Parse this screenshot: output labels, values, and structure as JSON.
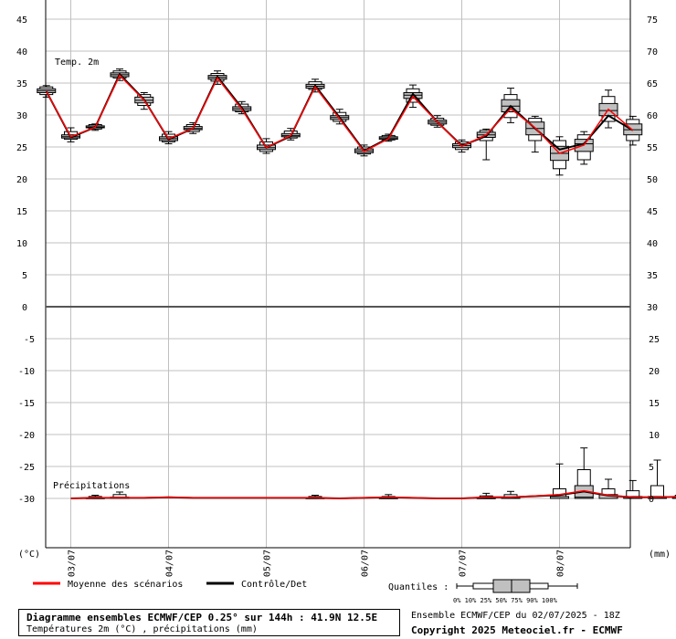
{
  "chart_data": {
    "type": "line",
    "panels": {
      "temperature": {
        "label": "Temp. 2m",
        "left_ticks": [
          "45",
          "40",
          "35",
          "30",
          "25",
          "20",
          "15",
          "10",
          "5",
          "0"
        ],
        "right_ticks": [
          "75",
          "70",
          "65",
          "60",
          "55",
          "50",
          "45",
          "40",
          "35",
          "30"
        ],
        "ylim": [
          0,
          47
        ]
      },
      "precipitation": {
        "label": "Précipitations",
        "left_ticks": [
          "0",
          "-5",
          "-10",
          "-15",
          "-20",
          "-25",
          "-30"
        ],
        "right_ticks": [
          "30",
          "25",
          "20",
          "15",
          "10",
          "5",
          "0"
        ],
        "ylim": [
          0,
          30
        ]
      }
    },
    "left_unit": "(°C)",
    "right_unit": "(mm)",
    "x_labels": [
      "03/07",
      "04/07",
      "05/07",
      "06/07",
      "07/07",
      "08/07"
    ],
    "x_hours": [
      6,
      12,
      18,
      24,
      30,
      36,
      42,
      48,
      54,
      60,
      66,
      72,
      78,
      84,
      90,
      96,
      102,
      108,
      114,
      120,
      126,
      132,
      138,
      144
    ],
    "temp_mean": [
      33.7,
      26.6,
      28.1,
      36.2,
      32.3,
      26.3,
      27.9,
      35.8,
      30.9,
      24.9,
      26.8,
      34.4,
      29.4,
      24.3,
      26.3,
      32.9,
      28.9,
      25.1,
      26.9,
      31.0,
      28.0,
      24.0,
      25.3,
      30.9,
      27.6
    ],
    "temp_control": [
      33.7,
      26.5,
      28.1,
      36.4,
      32.4,
      26.2,
      27.9,
      36.0,
      31.1,
      24.9,
      26.7,
      34.6,
      29.6,
      24.4,
      26.4,
      33.3,
      28.9,
      25.2,
      26.7,
      31.4,
      27.9,
      24.6,
      25.5,
      29.9,
      27.6
    ],
    "temp_boxes": [
      {
        "p0": 32.8,
        "p10": 33.2,
        "p25": 33.5,
        "p50": 33.8,
        "p75": 34.1,
        "p90": 34.4,
        "p100": 34.6
      },
      {
        "p0": 25.8,
        "p10": 26.2,
        "p25": 26.4,
        "p50": 26.6,
        "p75": 26.9,
        "p90": 27.4,
        "p100": 28.0
      },
      {
        "p0": 27.6,
        "p10": 27.8,
        "p25": 28.0,
        "p50": 28.1,
        "p75": 28.3,
        "p90": 28.5,
        "p100": 28.6
      },
      {
        "p0": 35.4,
        "p10": 35.8,
        "p25": 36.0,
        "p50": 36.3,
        "p75": 36.6,
        "p90": 36.9,
        "p100": 37.2
      },
      {
        "p0": 30.9,
        "p10": 31.5,
        "p25": 31.9,
        "p50": 32.3,
        "p75": 32.8,
        "p90": 33.2,
        "p100": 33.5
      },
      {
        "p0": 25.5,
        "p10": 25.8,
        "p25": 26.0,
        "p50": 26.3,
        "p75": 26.6,
        "p90": 27.0,
        "p100": 27.4
      },
      {
        "p0": 27.1,
        "p10": 27.4,
        "p25": 27.7,
        "p50": 27.9,
        "p75": 28.2,
        "p90": 28.5,
        "p100": 28.8
      },
      {
        "p0": 34.8,
        "p10": 35.3,
        "p25": 35.6,
        "p50": 35.9,
        "p75": 36.2,
        "p90": 36.5,
        "p100": 36.9
      },
      {
        "p0": 30.2,
        "p10": 30.5,
        "p25": 30.7,
        "p50": 31.0,
        "p75": 31.3,
        "p90": 31.7,
        "p100": 32.1
      },
      {
        "p0": 24.0,
        "p10": 24.3,
        "p25": 24.6,
        "p50": 24.9,
        "p75": 25.3,
        "p90": 25.8,
        "p100": 26.3
      },
      {
        "p0": 26.1,
        "p10": 26.4,
        "p25": 26.6,
        "p50": 26.8,
        "p75": 27.1,
        "p90": 27.5,
        "p100": 27.9
      },
      {
        "p0": 33.6,
        "p10": 34.0,
        "p25": 34.2,
        "p50": 34.5,
        "p75": 34.8,
        "p90": 35.2,
        "p100": 35.6
      },
      {
        "p0": 28.6,
        "p10": 29.0,
        "p25": 29.3,
        "p50": 29.6,
        "p75": 29.9,
        "p90": 30.4,
        "p100": 30.9
      },
      {
        "p0": 23.6,
        "p10": 23.9,
        "p25": 24.1,
        "p50": 24.4,
        "p75": 24.7,
        "p90": 25.0,
        "p100": 25.3
      },
      {
        "p0": 25.9,
        "p10": 26.1,
        "p25": 26.2,
        "p50": 26.4,
        "p75": 26.6,
        "p90": 26.8,
        "p100": 27.0
      },
      {
        "p0": 31.2,
        "p10": 32.0,
        "p25": 32.6,
        "p50": 33.1,
        "p75": 33.5,
        "p90": 34.1,
        "p100": 34.7
      },
      {
        "p0": 28.1,
        "p10": 28.4,
        "p25": 28.6,
        "p50": 28.9,
        "p75": 29.2,
        "p90": 29.5,
        "p100": 29.9
      },
      {
        "p0": 24.2,
        "p10": 24.6,
        "p25": 24.9,
        "p50": 25.2,
        "p75": 25.5,
        "p90": 25.8,
        "p100": 26.1
      },
      {
        "p0": 23.0,
        "p10": 26.0,
        "p25": 26.5,
        "p50": 26.9,
        "p75": 27.3,
        "p90": 27.6,
        "p100": 27.8
      },
      {
        "p0": 28.8,
        "p10": 29.6,
        "p25": 30.5,
        "p50": 31.4,
        "p75": 32.4,
        "p90": 33.2,
        "p100": 34.2
      },
      {
        "p0": 24.2,
        "p10": 26.0,
        "p25": 26.9,
        "p50": 27.9,
        "p75": 28.9,
        "p90": 29.5,
        "p100": 29.8
      },
      {
        "p0": 20.6,
        "p10": 21.6,
        "p25": 22.9,
        "p50": 24.0,
        "p75": 25.1,
        "p90": 26.0,
        "p100": 26.6
      },
      {
        "p0": 22.3,
        "p10": 23.0,
        "p25": 24.3,
        "p50": 25.5,
        "p75": 26.2,
        "p90": 26.9,
        "p100": 27.4
      },
      {
        "p0": 28.0,
        "p10": 29.0,
        "p25": 29.9,
        "p50": 30.7,
        "p75": 31.8,
        "p90": 32.9,
        "p100": 33.9
      },
      {
        "p0": 25.3,
        "p10": 26.0,
        "p25": 26.9,
        "p50": 27.7,
        "p75": 28.6,
        "p90": 29.3,
        "p100": 29.8
      }
    ],
    "precip_mean": [
      0,
      0.1,
      0.1,
      0.1,
      0.2,
      0.1,
      0.1,
      0.1,
      0.1,
      0.1,
      0.1,
      0,
      0.1,
      0.2,
      0.1,
      0,
      0,
      0.2,
      0.2,
      0.4,
      0.6,
      1.2,
      0.5,
      0.2,
      0.2,
      0.3,
      0.2,
      0.1
    ],
    "precip_boxes": [
      {
        "t": 12,
        "p0": 0,
        "p10": 0,
        "p25": 0,
        "p50": 0,
        "p75": 0.1,
        "p90": 0.3,
        "p100": 0.5
      },
      {
        "t": 18,
        "p0": 0,
        "p10": 0,
        "p25": 0,
        "p50": 0,
        "p75": 0.2,
        "p90": 0.6,
        "p100": 1.0
      },
      {
        "t": 66,
        "p0": 0,
        "p10": 0,
        "p25": 0,
        "p50": 0,
        "p75": 0.1,
        "p90": 0.3,
        "p100": 0.5
      },
      {
        "t": 84,
        "p0": 0,
        "p10": 0,
        "p25": 0,
        "p50": 0,
        "p75": 0.1,
        "p90": 0.3,
        "p100": 0.6
      },
      {
        "t": 108,
        "p0": 0,
        "p10": 0,
        "p25": 0,
        "p50": 0,
        "p75": 0.1,
        "p90": 0.4,
        "p100": 0.8
      },
      {
        "t": 114,
        "p0": 0,
        "p10": 0,
        "p25": 0,
        "p50": 0,
        "p75": 0.2,
        "p90": 0.6,
        "p100": 1.1
      },
      {
        "t": 126,
        "p0": 0,
        "p10": 0,
        "p25": 0,
        "p50": 0,
        "p75": 0.3,
        "p90": 1.5,
        "p100": 5.4
      },
      {
        "t": 132,
        "p0": 0,
        "p10": 0,
        "p25": 0,
        "p50": 0.2,
        "p75": 2.0,
        "p90": 4.5,
        "p100": 7.9
      },
      {
        "t": 138,
        "p0": 0,
        "p10": 0,
        "p25": 0,
        "p50": 0,
        "p75": 0.6,
        "p90": 1.5,
        "p100": 3.0
      },
      {
        "t": 144,
        "p0": 0,
        "p10": 0,
        "p25": 0,
        "p50": 0,
        "p75": 0.3,
        "p90": 1.2,
        "p100": 2.8
      },
      {
        "t": 150,
        "p0": 0,
        "p10": 0,
        "p25": 0,
        "p50": 0,
        "p75": 0.3,
        "p90": 2.0,
        "p100": 6.0
      },
      {
        "t": 156,
        "p0": 0,
        "p10": 0,
        "p25": 0,
        "p50": 0,
        "p75": 0.2,
        "p90": 0.5,
        "p100": 0.8
      },
      {
        "t": 162,
        "p0": 0,
        "p10": 0,
        "p25": 0,
        "p50": 0,
        "p75": 0.1,
        "p90": 0.8,
        "p100": 1.5
      }
    ]
  },
  "legend": {
    "mean_label": "Moyenne des scénarios",
    "control_label": "Contrôle/Det",
    "quantiles_label": "Quantiles :",
    "quantile_ticks": "0%  10% 25% 50% 75% 90% 100%",
    "mean_color": "#ff0000",
    "control_color": "#000000",
    "box_fill": "#c0c0c0"
  },
  "footer": {
    "title": "Diagramme ensembles ECMWF/CEP 0.25° sur 144h : 41.9N 12.5E",
    "subtitle": "Températures 2m (°C) , précipitations (mm)",
    "ensemble_info": "Ensemble ECMWF/CEP du 02/07/2025 - 18Z",
    "copyright": "Copyright 2025 Meteociel.fr - ECMWF"
  }
}
